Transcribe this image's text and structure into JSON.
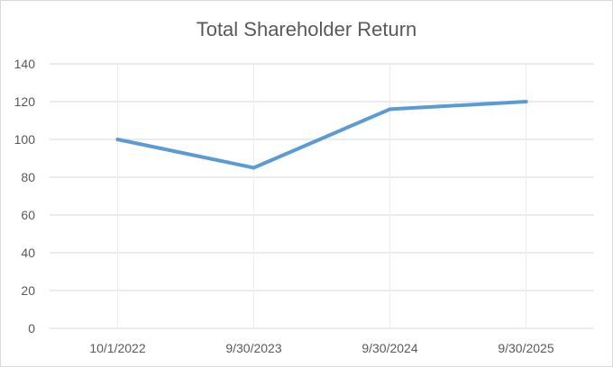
{
  "chart_data": {
    "type": "line",
    "title": "Total Shareholder Return",
    "xlabel": "",
    "ylabel": "",
    "categories": [
      "10/1/2022",
      "9/30/2023",
      "9/30/2024",
      "9/30/2025"
    ],
    "series": [
      {
        "values": [
          100,
          85,
          116,
          120
        ],
        "color": "#5b9bd5"
      }
    ],
    "ylim": [
      0,
      140
    ],
    "yticks": [
      0,
      20,
      40,
      60,
      80,
      100,
      120,
      140
    ],
    "grid": true,
    "legend": "none"
  }
}
